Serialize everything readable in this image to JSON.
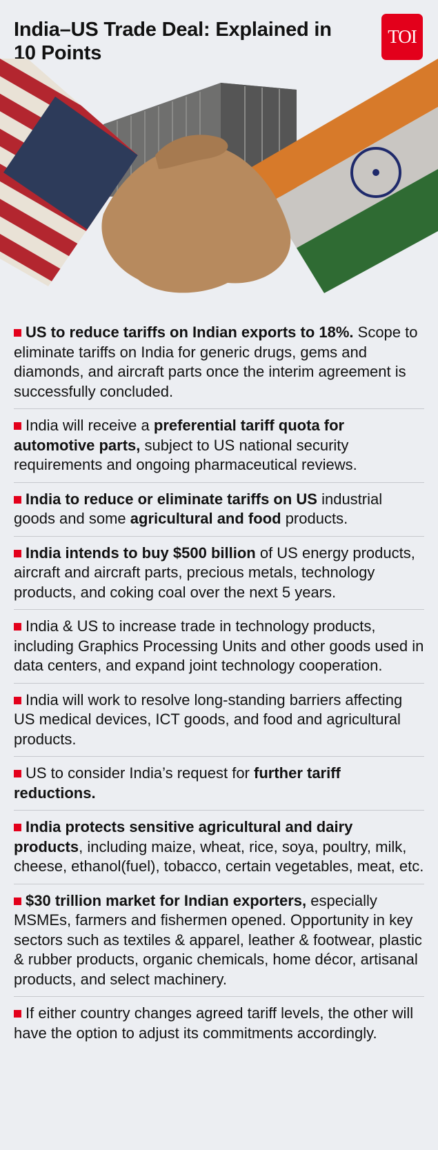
{
  "header": {
    "title": "India–US Trade Deal: Explained in 10 Points",
    "logo_text": "TOI",
    "logo_color": "#e3001b"
  },
  "hero": {
    "depicts": "handshake between US-flag and India-flag sleeves in front of a shipping container"
  },
  "bullet_color": "#e3001b",
  "items": [
    [
      {
        "t": "US to reduce tariffs on Indian exports to 18%.",
        "b": true
      },
      {
        "t": " Scope to eliminate tariffs on India for generic drugs, gems and diamonds, and aircraft parts once the interim agreement is successfully concluded.",
        "b": false
      }
    ],
    [
      {
        "t": "India will receive a ",
        "b": false
      },
      {
        "t": "preferential tariff quota for automotive parts,",
        "b": true
      },
      {
        "t": " subject to US national security requirements and ongoing pharmaceutical reviews.",
        "b": false
      }
    ],
    [
      {
        "t": "India to reduce or eliminate tariffs on US",
        "b": true
      },
      {
        "t": " industrial goods and some ",
        "b": false
      },
      {
        "t": "agricultural and food",
        "b": true
      },
      {
        "t": " products.",
        "b": false
      }
    ],
    [
      {
        "t": "India intends to buy $500 billion",
        "b": true
      },
      {
        "t": " of US energy products, aircraft and aircraft parts, precious metals, technology products, and coking coal over the next 5 years.",
        "b": false
      }
    ],
    [
      {
        "t": "India & US to increase trade in technology products, including Graphics Processing Units and other goods used in data centers, and expand joint technology cooperation.",
        "b": false
      }
    ],
    [
      {
        "t": "India will work to resolve long-standing barriers affecting US medical devices, ICT goods, and food and agricultural products.",
        "b": false
      }
    ],
    [
      {
        "t": "US to consider India’s request for ",
        "b": false
      },
      {
        "t": "further tariff reductions.",
        "b": true
      }
    ],
    [
      {
        "t": "India protects sensitive agricultural and dairy products",
        "b": true
      },
      {
        "t": ", including maize, wheat, rice, soya, poultry, milk, cheese, ethanol(fuel), tobacco, certain vegetables, meat, etc.",
        "b": false
      }
    ],
    [
      {
        "t": "$30 trillion market for Indian exporters,",
        "b": true
      },
      {
        "t": " especially MSMEs, farmers and fishermen opened. Opportunity in key sectors such as textiles & apparel, leather & footwear, plastic & rubber products, organic chemicals, home décor, artisanal products, and select machinery.",
        "b": false
      }
    ],
    [
      {
        "t": "If either country changes agreed tariff levels, the other will have the option to adjust its commitments accordingly.",
        "b": false
      }
    ]
  ]
}
